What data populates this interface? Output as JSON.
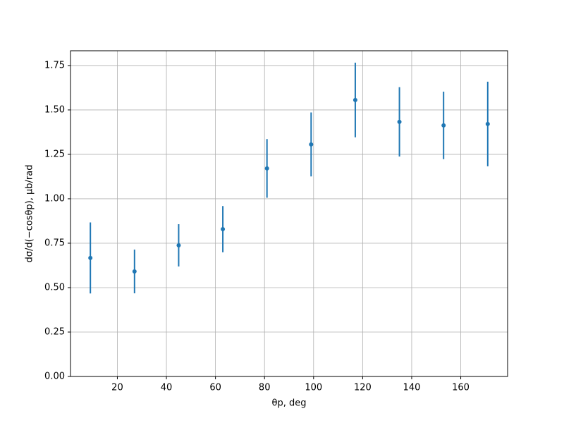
{
  "chart_data": {
    "type": "errorbar",
    "x_label": "θp, deg",
    "y_label": "dσ/d(−cosθp), μb/rad",
    "color": "#1f77b4",
    "grid": true,
    "x": [
      9,
      27,
      45,
      63,
      81,
      99,
      117,
      135,
      153,
      171
    ],
    "values": [
      0.667,
      0.591,
      0.738,
      0.829,
      1.171,
      1.306,
      1.556,
      1.433,
      1.413,
      1.421
    ],
    "errors": [
      0.2,
      0.123,
      0.119,
      0.13,
      0.165,
      0.18,
      0.21,
      0.195,
      0.19,
      0.238
    ],
    "xlim": [
      0.9,
      179.1
    ],
    "ylim": [
      0,
      1.833
    ],
    "xticks": [
      20,
      40,
      60,
      80,
      100,
      120,
      140,
      160
    ],
    "yticks": [
      {
        "value": 0,
        "label": "0.00"
      },
      {
        "value": 0.25,
        "label": "0.25"
      },
      {
        "value": 0.5,
        "label": "0.50"
      },
      {
        "value": 0.75,
        "label": "0.75"
      },
      {
        "value": 1,
        "label": "1.00"
      },
      {
        "value": 1.25,
        "label": "1.25"
      },
      {
        "value": 1.5,
        "label": "1.50"
      },
      {
        "value": 1.75,
        "label": "1.75"
      }
    ]
  }
}
